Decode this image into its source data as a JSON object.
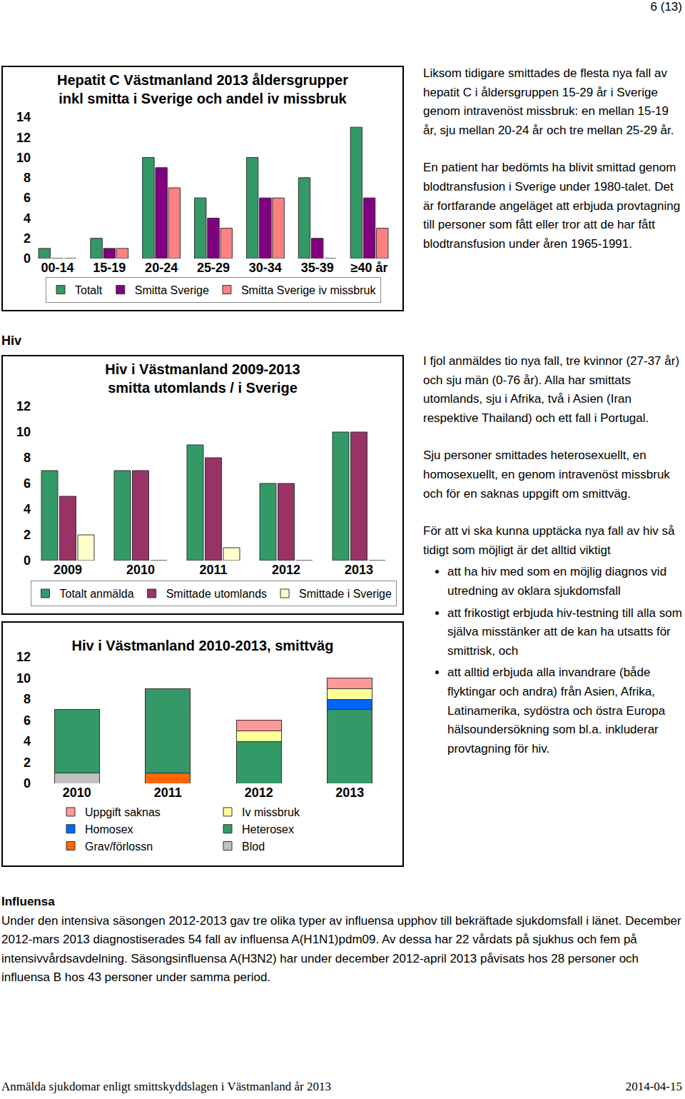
{
  "page_number": "6 (13)",
  "hepatit_c_text": [
    "Liksom tidigare smittades de flesta nya fall av hepatit C i åldersgruppen 15-29 år i Sverige genom intravenöst missbruk: en mellan 15-19 år, sju mellan 20-24 år och tre mellan 25-29 år.",
    "En patient har bedömts ha blivit smittad genom blodtransfusion i Sverige under 1980-talet. Det är fortfarande angeläget att erbjuda provtagning till personer som fått eller tror att de har fått blodtransfusion under åren 1965-1991."
  ],
  "hiv_heading": "Hiv",
  "hiv_text": {
    "paragraphs": [
      "I fjol anmäldes tio nya fall, tre kvinnor (27-37 år) och sju män (0-76 år). Alla har smittats utomlands, sju i Afrika, två i Asien (Iran respektive Thailand) och ett fall i Portugal.",
      "Sju personer smittades heterosexuellt, en homosexuellt, en genom intravenöst missbruk och för en saknas uppgift om smittväg."
    ],
    "list_intro": "För att vi ska kunna upptäcka nya fall av hiv så tidigt som möjligt är det alltid viktigt",
    "bullets": [
      "att ha hiv med som en möjlig diagnos vid utredning av oklara sjukdomsfall",
      "att frikostigt erbjuda hiv-testning till alla som själva misstänker att de kan ha utsatts för smittrisk, och",
      "att alltid erbjuda alla invandrare (både flyktingar och andra) från Asien, Afrika, Latinamerika, sydöstra och östra Europa hälsoundersökning som bl.a. inkluderar provtagning för hiv."
    ]
  },
  "influensa": {
    "heading": "Influensa",
    "text": "Under den intensiva säsongen 2012-2013 gav tre olika typer av influensa upphov till bekräftade sjukdomsfall i länet. December 2012-mars 2013 diagnostiserades 54 fall av influensa A(H1N1)pdm09. Av dessa har 22 vårdats på sjukhus och fem på intensivvårdsavdelning. Säsongsinfluensa A(H3N2) har under december 2012-april 2013 påvisats hos 28 personer och influensa B hos 43 personer under samma period."
  },
  "footer": {
    "left": "Anmälda sjukdomar enligt smittskyddslagen i Västmanland år 2013",
    "right": "2014-04-15"
  },
  "chart_data": [
    {
      "type": "bar",
      "title": [
        "Hepatit C Västmanland 2013 åldersgrupper",
        "inkl smitta i Sverige och andel iv missbruk"
      ],
      "categories": [
        "00-14",
        "15-19",
        "20-24",
        "25-29",
        "30-34",
        "35-39",
        "≥40 år"
      ],
      "series": [
        {
          "name": "Totalt",
          "color": "#339966",
          "values": [
            1,
            2,
            10,
            6,
            10,
            8,
            13
          ]
        },
        {
          "name": "Smitta Sverige",
          "color": "#800080",
          "values": [
            0,
            1,
            9,
            4,
            6,
            2,
            6
          ]
        },
        {
          "name": "Smitta Sverige iv missbruk",
          "color": "#ff8080",
          "values": [
            0,
            1,
            7,
            3,
            6,
            0,
            3
          ]
        }
      ],
      "ylim": [
        0,
        14
      ],
      "yticks": [
        0,
        2,
        4,
        6,
        8,
        10,
        12,
        14
      ],
      "grid": false,
      "legend": "bottom"
    },
    {
      "type": "bar",
      "title": [
        "Hiv i Västmanland 2009-2013",
        "smitta utomlands / i Sverige"
      ],
      "categories": [
        "2009",
        "2010",
        "2011",
        "2012",
        "2013"
      ],
      "series": [
        {
          "name": "Totalt anmälda",
          "color": "#339966",
          "values": [
            7,
            7,
            9,
            6,
            10
          ]
        },
        {
          "name": "Smittade utomlands",
          "color": "#993366",
          "values": [
            5,
            7,
            8,
            6,
            10
          ]
        },
        {
          "name": "Smittade i Sverige",
          "color": "#ffffcc",
          "values": [
            2,
            0,
            1,
            0,
            0
          ]
        }
      ],
      "ylim": [
        0,
        12
      ],
      "yticks": [
        0,
        2,
        4,
        6,
        8,
        10,
        12
      ],
      "grid": false,
      "legend": "bottom"
    },
    {
      "type": "bar",
      "title": [
        "Hiv i Västmanland 2010-2013, smittväg"
      ],
      "categories": [
        "2010",
        "2011",
        "2012",
        "2013"
      ],
      "series": [
        {
          "name": "Blod",
          "color": "#c0c0c0",
          "values": [
            1,
            0,
            0,
            0
          ]
        },
        {
          "name": "Grav/förlossn",
          "color": "#ff6600",
          "values": [
            0,
            1,
            0,
            0
          ]
        },
        {
          "name": "Heterosex",
          "color": "#339966",
          "values": [
            6,
            8,
            4,
            7
          ]
        },
        {
          "name": "Homosex",
          "color": "#0066ff",
          "values": [
            0,
            0,
            0,
            1
          ]
        },
        {
          "name": "Iv missbruk",
          "color": "#ffff99",
          "values": [
            0,
            0,
            1,
            1
          ]
        },
        {
          "name": "Uppgift saknas",
          "color": "#ff9999",
          "values": [
            0,
            0,
            1,
            1
          ]
        }
      ],
      "ylim": [
        0,
        12
      ],
      "yticks": [
        0,
        2,
        4,
        6,
        8,
        10,
        12
      ],
      "grid": false,
      "stacked": true,
      "legend": "bottom"
    }
  ]
}
